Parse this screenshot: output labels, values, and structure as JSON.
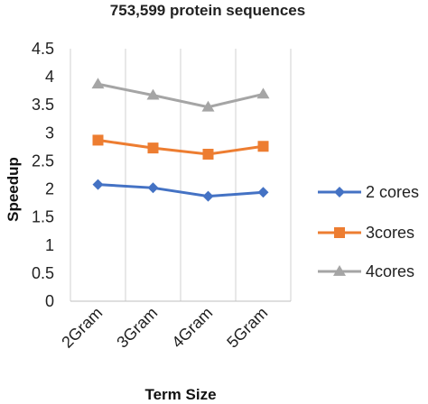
{
  "chart_data": {
    "type": "line",
    "title": "753,599 protein sequences",
    "xlabel": "Term Size",
    "ylabel": "Speedup",
    "categories": [
      "2Gram",
      "3Gram",
      "4Gram",
      "5Gram"
    ],
    "ylim": [
      0,
      4.5
    ],
    "yticks": [
      "0",
      "0.5",
      "1",
      "1.5",
      "2",
      "2.5",
      "3",
      "3.5",
      "4",
      "4.5"
    ],
    "grid": "vertical",
    "legend": "right",
    "series": [
      {
        "name": "2 cores",
        "values": [
          2.08,
          2.02,
          1.87,
          1.94
        ],
        "color": "#4472C4",
        "marker": "diamond"
      },
      {
        "name": "3cores",
        "values": [
          2.87,
          2.73,
          2.62,
          2.76
        ],
        "color": "#ED7D31",
        "marker": "square"
      },
      {
        "name": "4cores",
        "values": [
          3.87,
          3.67,
          3.46,
          3.69
        ],
        "color": "#A5A5A5",
        "marker": "triangle"
      }
    ]
  }
}
